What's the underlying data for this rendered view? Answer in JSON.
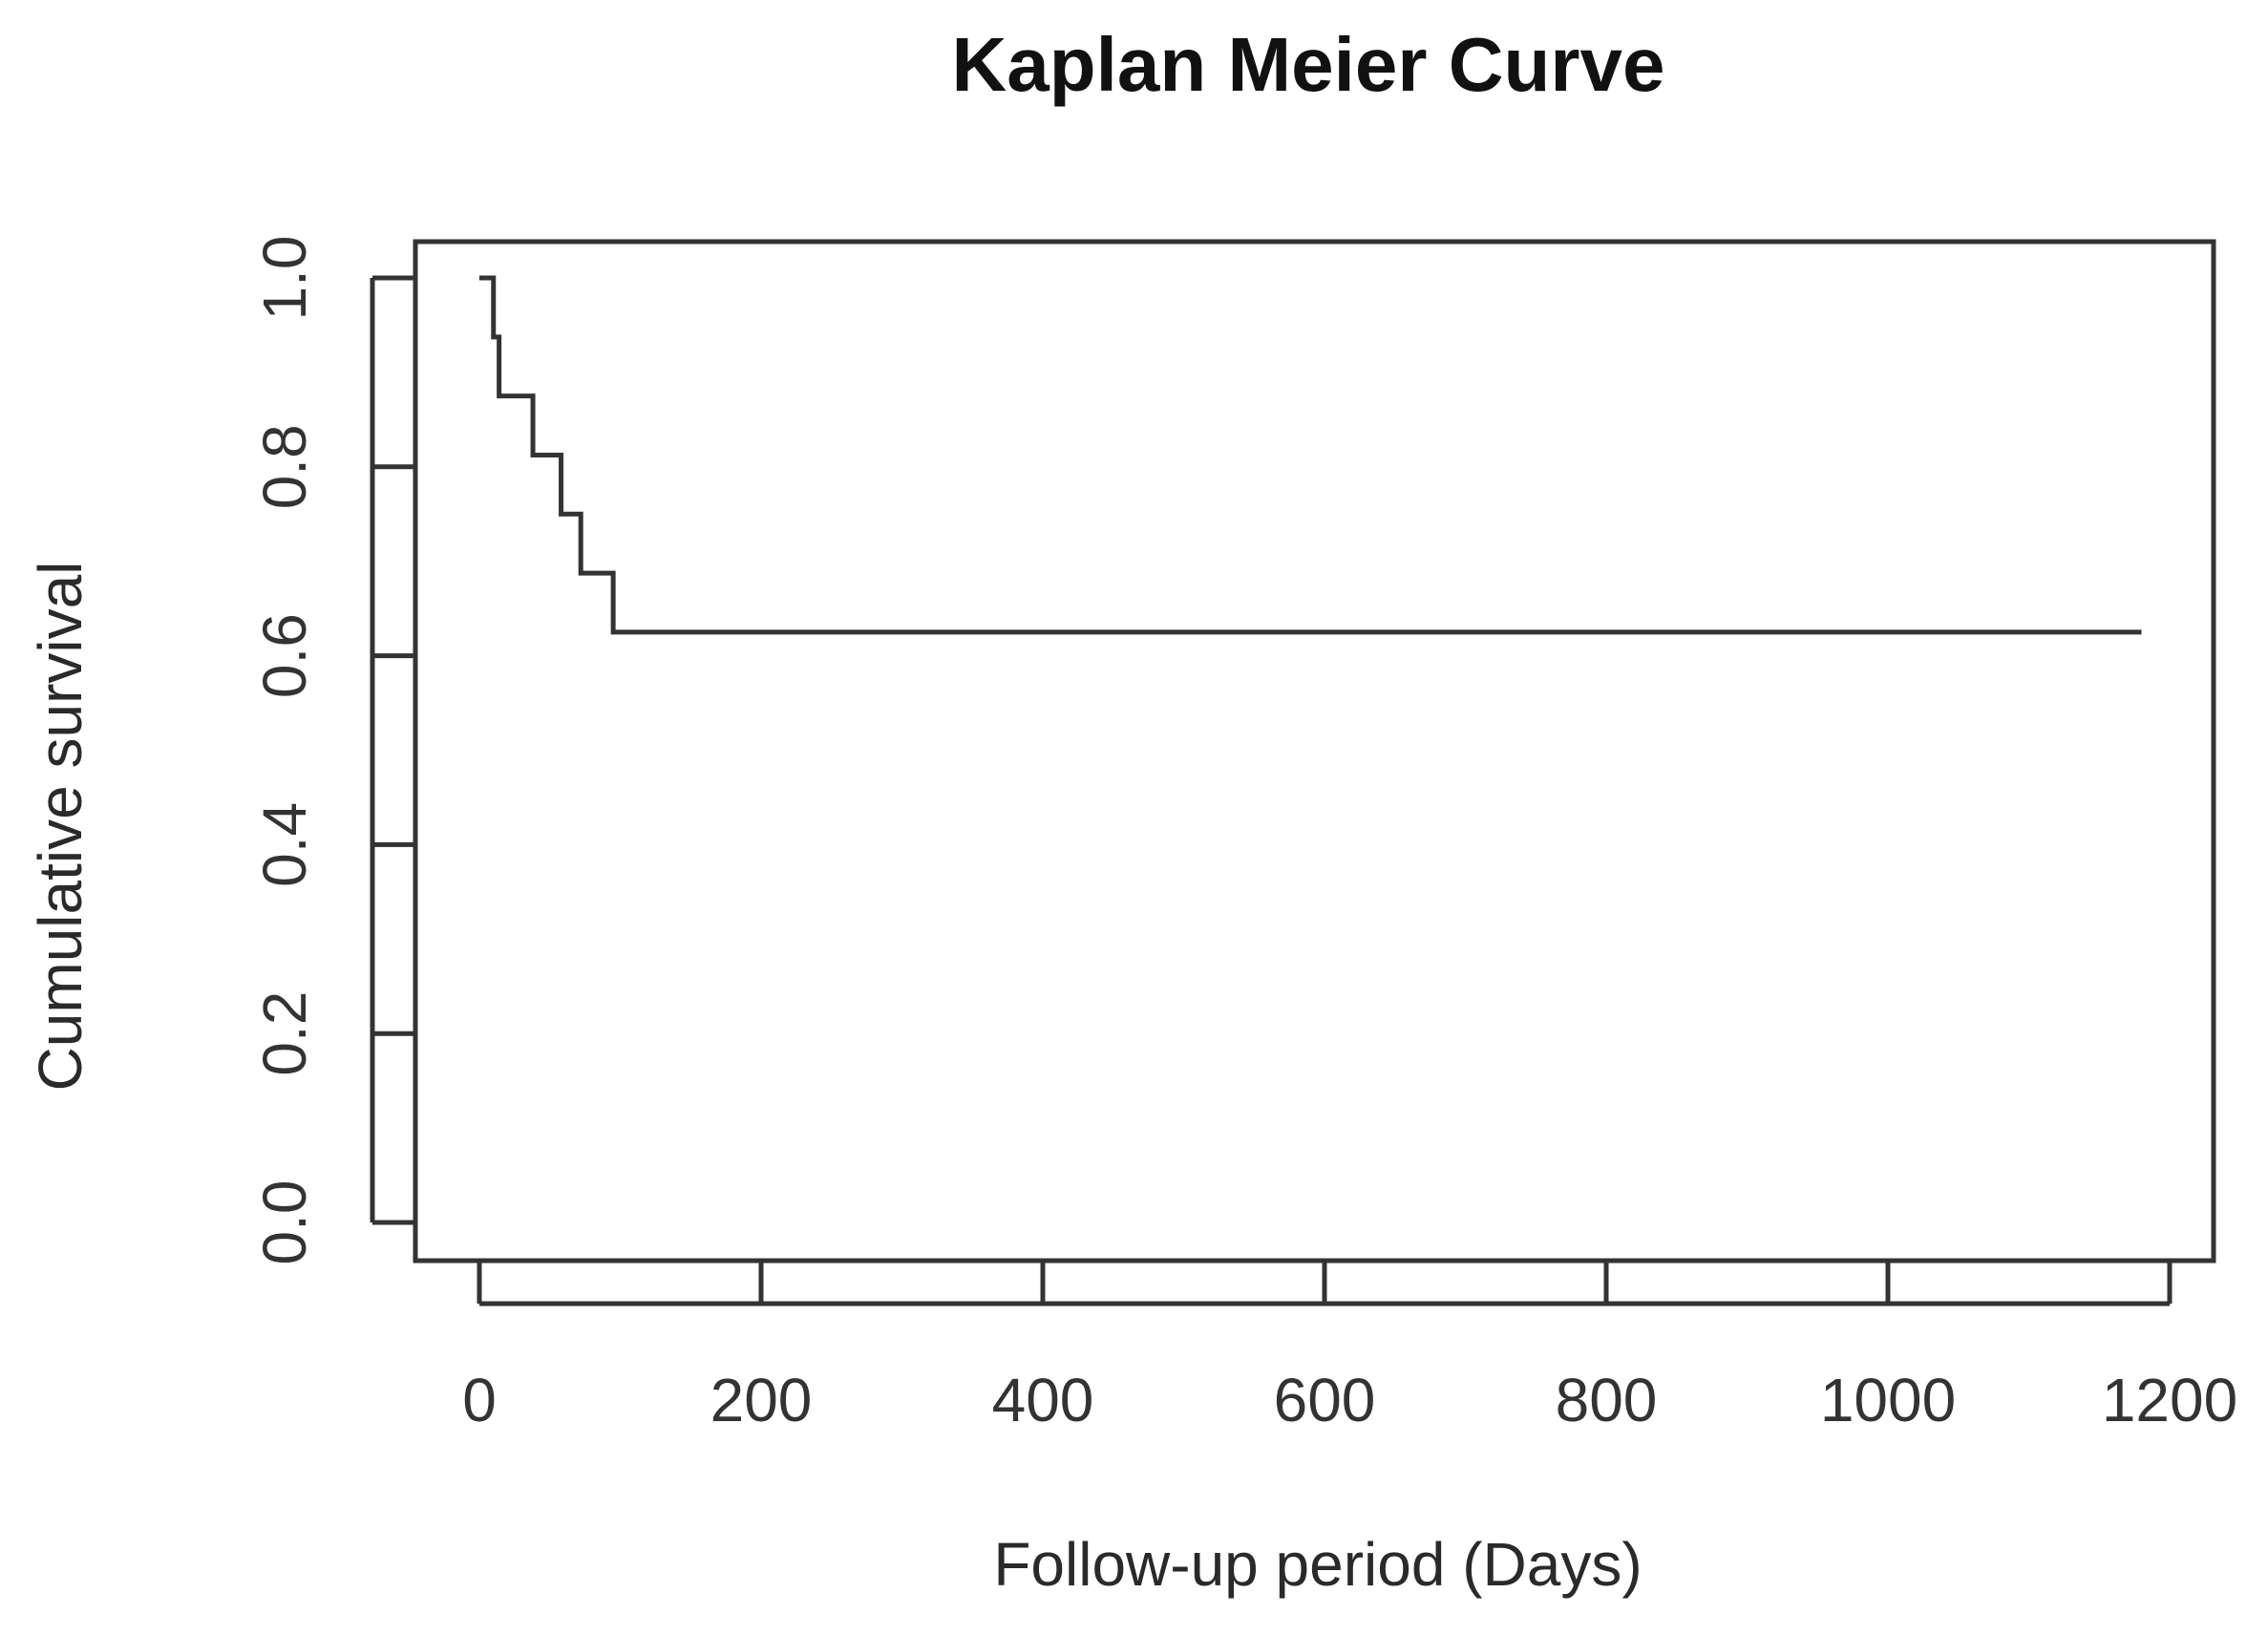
{
  "chart_data": {
    "type": "line",
    "title": "Kaplan Meier Curve",
    "xlabel": "Follow-up period (Days)",
    "ylabel": "Cumulative survival",
    "xlim": [
      0,
      1200
    ],
    "ylim": [
      0,
      1
    ],
    "x_ticks": [
      0,
      200,
      400,
      600,
      800,
      1000,
      1200
    ],
    "x_tick_labels": [
      "0",
      "200",
      "400",
      "600",
      "800",
      "1000",
      "1200"
    ],
    "y_ticks": [
      0,
      0.2,
      0.4,
      0.6,
      0.8,
      1.0
    ],
    "y_tick_labels": [
      "0.0",
      "0.2",
      "0.4",
      "0.6",
      "0.8",
      "1.0"
    ],
    "grid": false,
    "series": [
      {
        "style": "step",
        "x": [
          0,
          10,
          14,
          38,
          58,
          72,
          95,
          1180
        ],
        "y": [
          1.0,
          0.9375,
          0.875,
          0.8125,
          0.75,
          0.6875,
          0.625,
          0.625
        ]
      }
    ]
  }
}
